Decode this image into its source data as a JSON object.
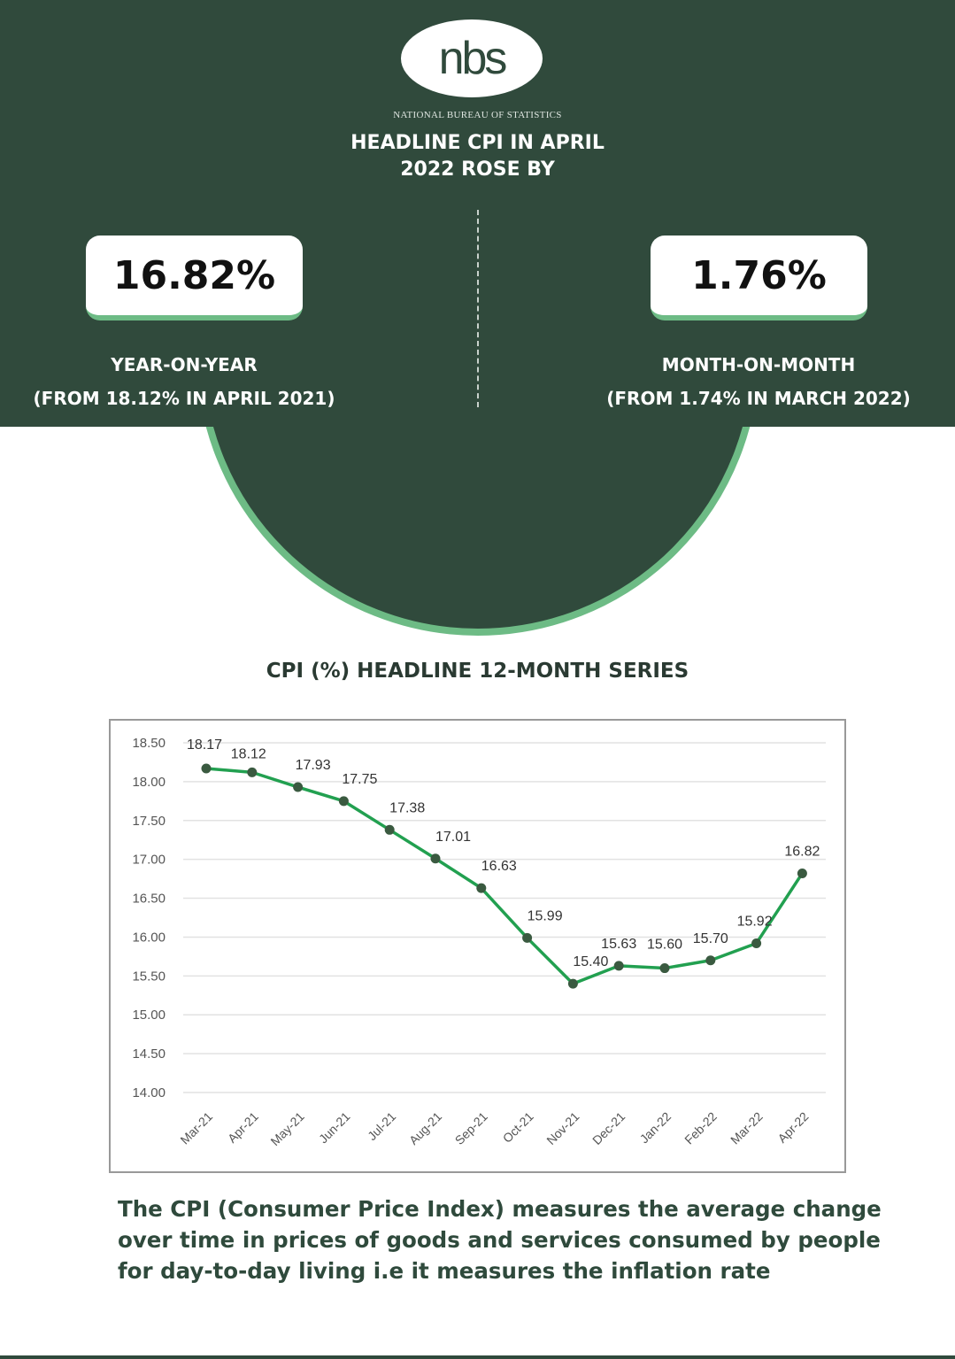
{
  "header": {
    "logo_text": "nbs",
    "organization": "NATIONAL BUREAU OF STATISTICS",
    "headline_line1": "HEADLINE CPI IN APRIL",
    "headline_line2": "2022 ROSE BY"
  },
  "yoy": {
    "value": "16.82%",
    "label": "YEAR-ON-YEAR",
    "note": "(FROM 18.12% IN APRIL 2021)"
  },
  "mom": {
    "value": "1.76%",
    "label": "MONTH-ON-MONTH",
    "note": "(FROM 1.74% IN MARCH 2022)"
  },
  "chart_title": "CPI (%)  HEADLINE 12-MONTH SERIES",
  "description": "The CPI (Consumer Price Index) measures the average change over time in prices of goods and services consumed by people for day-to-day living i.e it measures the inflation rate",
  "colors": {
    "dark_green": "#304a3c",
    "accent_green": "#6dbb85",
    "line_green": "#22a050",
    "marker": "#3a5a40"
  },
  "chart_data": {
    "type": "line",
    "title": "CPI (%)  HEADLINE 12-MONTH SERIES",
    "categories": [
      "Mar-21",
      "Apr-21",
      "May-21",
      "Jun-21",
      "Jul-21",
      "Aug-21",
      "Sep-21",
      "Oct-21",
      "Nov-21",
      "Dec-21",
      "Jan-22",
      "Feb-22",
      "Mar-22",
      "Apr-22"
    ],
    "values": [
      18.17,
      18.12,
      17.93,
      17.75,
      17.38,
      17.01,
      16.63,
      15.99,
      15.4,
      15.63,
      15.6,
      15.7,
      15.92,
      16.82
    ],
    "labels": [
      "18.17",
      "18.12",
      "17.93",
      "17.75",
      "17.38",
      "17.01",
      "16.63",
      "15.99",
      "15.40",
      "15.63",
      "15.60",
      "15.70",
      "15.92",
      "16.82"
    ],
    "yticks": [
      "14.00",
      "14.50",
      "15.00",
      "15.50",
      "16.00",
      "16.50",
      "17.00",
      "17.50",
      "18.00",
      "18.50"
    ],
    "ylim": [
      14,
      18.5
    ],
    "grid": true,
    "data_labels": true
  }
}
